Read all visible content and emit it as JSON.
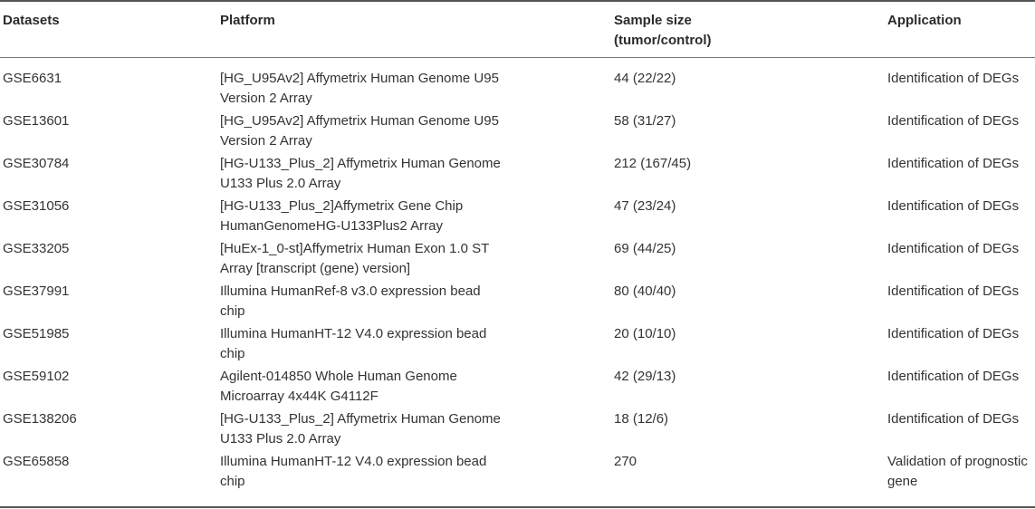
{
  "table": {
    "headers": {
      "datasets": "Datasets",
      "platform": "Platform",
      "sample_size_line1": "Sample size",
      "sample_size_line2": "(tumor/control)",
      "application": "Application"
    },
    "rows": [
      {
        "dataset": "GSE6631",
        "platform_l1": "[HG_U95Av2] Affymetrix Human Genome U95",
        "platform_l2": "Version 2 Array",
        "sample_size": "44 (22/22)",
        "application_l1": "Identification of DEGs",
        "application_l2": ""
      },
      {
        "dataset": "GSE13601",
        "platform_l1": "[HG_U95Av2] Affymetrix Human Genome U95",
        "platform_l2": "Version 2 Array",
        "sample_size": "58 (31/27)",
        "application_l1": "Identification of DEGs",
        "application_l2": ""
      },
      {
        "dataset": "GSE30784",
        "platform_l1": "[HG-U133_Plus_2] Affymetrix Human Genome",
        "platform_l2": "U133 Plus 2.0 Array",
        "sample_size": "212 (167/45)",
        "application_l1": "Identification of DEGs",
        "application_l2": ""
      },
      {
        "dataset": "GSE31056",
        "platform_l1": "[HG-U133_Plus_2]Affymetrix Gene Chip",
        "platform_l2": "HumanGenomeHG-U133Plus2 Array",
        "sample_size": "47 (23/24)",
        "application_l1": "Identification of DEGs",
        "application_l2": ""
      },
      {
        "dataset": "GSE33205",
        "platform_l1": "[HuEx-1_0-st]Affymetrix Human Exon 1.0 ST",
        "platform_l2": "Array [transcript (gene) version]",
        "sample_size": "69 (44/25)",
        "application_l1": "Identification of DEGs",
        "application_l2": ""
      },
      {
        "dataset": "GSE37991",
        "platform_l1": "Illumina HumanRef-8 v3.0 expression bead",
        "platform_l2": "chip",
        "sample_size": "80 (40/40)",
        "application_l1": "Identification of DEGs",
        "application_l2": ""
      },
      {
        "dataset": "GSE51985",
        "platform_l1": "Illumina HumanHT-12 V4.0 expression bead",
        "platform_l2": "chip",
        "sample_size": "20 (10/10)",
        "application_l1": "Identification of DEGs",
        "application_l2": ""
      },
      {
        "dataset": "GSE59102",
        "platform_l1": "Agilent-014850 Whole Human Genome",
        "platform_l2": "Microarray 4x44K G4112F",
        "sample_size": "42 (29/13)",
        "application_l1": "Identification of DEGs",
        "application_l2": ""
      },
      {
        "dataset": "GSE138206",
        "platform_l1": "[HG-U133_Plus_2] Affymetrix Human Genome",
        "platform_l2": "U133 Plus 2.0 Array",
        "sample_size": "18 (12/6)",
        "application_l1": "Identification of DEGs",
        "application_l2": ""
      },
      {
        "dataset": "GSE65858",
        "platform_l1": "Illumina HumanHT-12 V4.0 expression bead",
        "platform_l2": "chip",
        "sample_size": "270",
        "application_l1": "Validation of prognostic",
        "application_l2": "gene"
      }
    ]
  }
}
